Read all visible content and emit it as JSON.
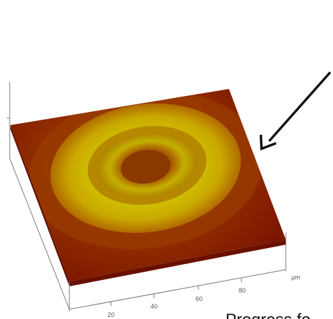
{
  "axis": {
    "ticks": [
      "20",
      "40",
      "60",
      "80"
    ],
    "unit": "µm"
  },
  "caption": "Progress fo"
}
